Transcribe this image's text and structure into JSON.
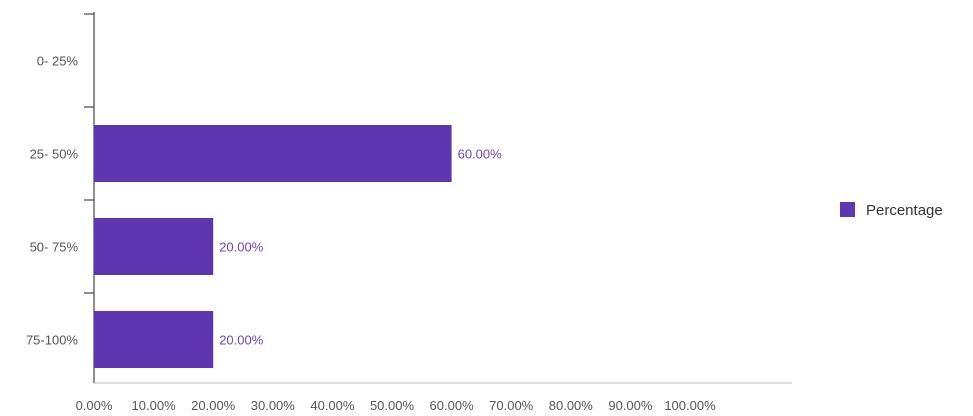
{
  "chart_data": {
    "type": "bar",
    "orientation": "horizontal",
    "categories": [
      "0- 25%",
      "25- 50%",
      "50- 75%",
      "75-100%"
    ],
    "series": [
      {
        "name": "Percentage",
        "values": [
          0,
          60,
          20,
          20
        ],
        "color": "#5f36b2"
      }
    ],
    "data_labels": [
      "",
      "60.00%",
      "20.00%",
      "20.00%"
    ],
    "x_ticks": [
      "0.00%",
      "10.00%",
      "20.00%",
      "30.00%",
      "40.00%",
      "50.00%",
      "60.00%",
      "70.00%",
      "80.00%",
      "90.00%",
      "100.00%"
    ],
    "xlim": [
      0,
      100
    ],
    "label_color": "#6c45c4",
    "grid": false,
    "legend_position": "right",
    "title": "",
    "xlabel": "",
    "ylabel": ""
  }
}
